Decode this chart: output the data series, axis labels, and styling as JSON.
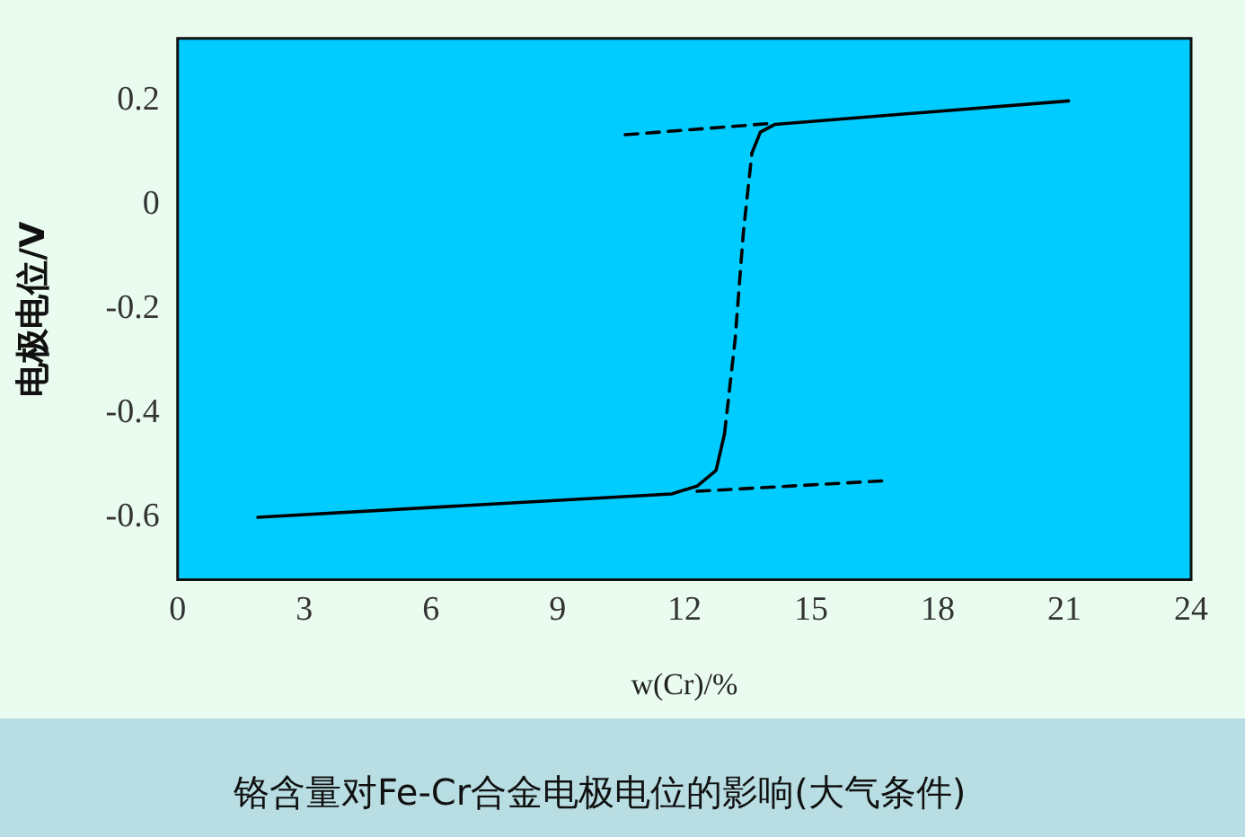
{
  "chart_data": {
    "type": "line",
    "xlabel": "w(Cr)/%",
    "ylabel": "电极电位/V",
    "annotations": [
      "铬含量对Fe-Cr合金电极电位的影响(大气条件)"
    ],
    "xlim": [
      0,
      24
    ],
    "xticks": [
      0,
      3,
      6,
      9,
      12,
      15,
      18,
      21,
      24
    ],
    "ylim": [
      -0.72,
      0.32
    ],
    "yticks": [
      -0.6,
      -0.4,
      -0.2,
      0,
      0.2
    ],
    "grid": false,
    "legend": false,
    "marker": "none",
    "series": [
      {
        "color": "#000000",
        "line_style": "solid",
        "x": [
          1.9,
          11.7,
          12.3,
          12.75,
          12.95
        ],
        "values": [
          -0.6,
          -0.555,
          -0.54,
          -0.51,
          -0.44
        ]
      },
      {
        "color": "#000000",
        "line_style": "dashed",
        "x": [
          12.95,
          13.2,
          13.4,
          13.6
        ],
        "values": [
          -0.44,
          -0.26,
          -0.05,
          0.1
        ]
      },
      {
        "color": "#000000",
        "line_style": "solid",
        "x": [
          13.6,
          13.8,
          14.15,
          21.1
        ],
        "values": [
          0.1,
          0.14,
          0.155,
          0.2
        ]
      },
      {
        "color": "#000000",
        "line_style": "dashed",
        "x": [
          12.3,
          16.7
        ],
        "values": [
          -0.55,
          -0.53
        ]
      },
      {
        "color": "#000000",
        "line_style": "dashed",
        "x": [
          10.6,
          14.1
        ],
        "values": [
          0.135,
          0.157
        ]
      }
    ]
  }
}
